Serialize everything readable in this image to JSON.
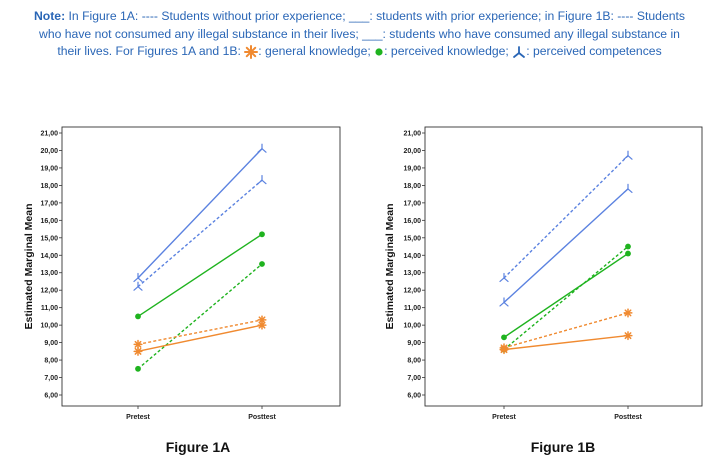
{
  "note": {
    "label": "Note:",
    "line1": " In Figure 1A: ---- Students without prior experience; ___: students with prior experience; in Figure 1B: ---- Students",
    "line2": "who have not consumed any illegal substance in their lives; ___: students who have consumed any illegal substance in",
    "line3_a": "their lives. For Figures 1A and 1B: ",
    "line3_b": ": general knowledge; ",
    "line3_c": ": perceived knowledge; ",
    "line3_d": ": perceived competences"
  },
  "colors": {
    "general": "#f08a30",
    "perceived_knowledge": "#1fb31f",
    "perceived_competences": "#5b82e0",
    "note_text": "#2a66b6"
  },
  "chart_data": [
    {
      "type": "line",
      "title": "Figure 1A",
      "ylabel": "Estimated Marginal Mean",
      "xlabel": "",
      "categories": [
        "Pretest",
        "Posttest"
      ],
      "ylim": [
        6.0,
        21.0
      ],
      "ytick_labels": [
        "6,00",
        "7,00",
        "8,00",
        "9,00",
        "10,00",
        "11,00",
        "12,00",
        "13,00",
        "14,00",
        "15,00",
        "16,00",
        "17,00",
        "18,00",
        "19,00",
        "20,00",
        "21,00"
      ],
      "grid": false,
      "series": [
        {
          "name": "perceived competences",
          "group": "with prior experience",
          "style": "solid",
          "marker": "y",
          "color": "#5b82e0",
          "values": [
            12.7,
            20.1
          ]
        },
        {
          "name": "perceived competences",
          "group": "without prior experience",
          "style": "dashed",
          "marker": "y",
          "color": "#5b82e0",
          "values": [
            12.2,
            18.3
          ]
        },
        {
          "name": "perceived knowledge",
          "group": "with prior experience",
          "style": "solid",
          "marker": "dot",
          "color": "#1fb31f",
          "values": [
            10.5,
            15.2
          ]
        },
        {
          "name": "perceived knowledge",
          "group": "without prior experience",
          "style": "dashed",
          "marker": "dot",
          "color": "#1fb31f",
          "values": [
            7.5,
            13.5
          ]
        },
        {
          "name": "general knowledge",
          "group": "with prior experience",
          "style": "solid",
          "marker": "star",
          "color": "#f08a30",
          "values": [
            8.5,
            10.0
          ]
        },
        {
          "name": "general knowledge",
          "group": "without prior experience",
          "style": "dashed",
          "marker": "star",
          "color": "#f08a30",
          "values": [
            8.9,
            10.3
          ]
        }
      ]
    },
    {
      "type": "line",
      "title": "Figure 1B",
      "ylabel": "Estimated Marginal Mean",
      "xlabel": "",
      "categories": [
        "Pretest",
        "Posttest"
      ],
      "ylim": [
        6.0,
        21.0
      ],
      "ytick_labels": [
        "6,00",
        "7,00",
        "8,00",
        "9,00",
        "10,00",
        "11,00",
        "12,00",
        "13,00",
        "14,00",
        "15,00",
        "16,00",
        "17,00",
        "18,00",
        "19,00",
        "20,00",
        "21,00"
      ],
      "grid": false,
      "series": [
        {
          "name": "perceived competences",
          "group": "have not consumed",
          "style": "dashed",
          "marker": "y",
          "color": "#5b82e0",
          "values": [
            12.7,
            19.7
          ]
        },
        {
          "name": "perceived competences",
          "group": "have consumed",
          "style": "solid",
          "marker": "y",
          "color": "#5b82e0",
          "values": [
            11.3,
            17.8
          ]
        },
        {
          "name": "perceived knowledge",
          "group": "have not consumed",
          "style": "dashed",
          "marker": "dot",
          "color": "#1fb31f",
          "values": [
            8.6,
            14.5
          ]
        },
        {
          "name": "perceived knowledge",
          "group": "have consumed",
          "style": "solid",
          "marker": "dot",
          "color": "#1fb31f",
          "values": [
            9.3,
            14.1
          ]
        },
        {
          "name": "general knowledge",
          "group": "have not consumed",
          "style": "dashed",
          "marker": "star",
          "color": "#f08a30",
          "values": [
            8.7,
            10.7
          ]
        },
        {
          "name": "general knowledge",
          "group": "have consumed",
          "style": "solid",
          "marker": "star",
          "color": "#f08a30",
          "values": [
            8.6,
            9.4
          ]
        }
      ]
    }
  ]
}
